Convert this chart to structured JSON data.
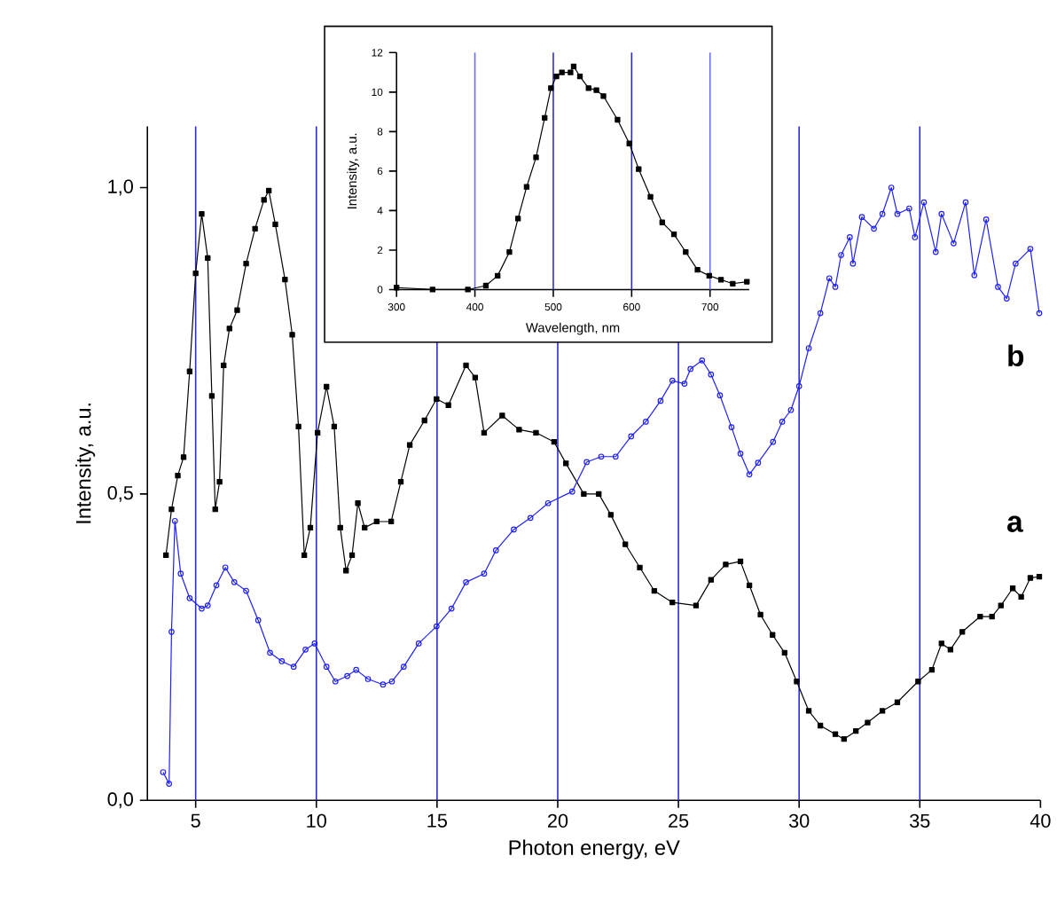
{
  "chart_data": [
    {
      "type": "line",
      "xlabel": "Photon energy, eV",
      "ylabel": "Intensity, a.u.",
      "xlim": [
        3,
        40
      ],
      "ylim": [
        0,
        1.1
      ],
      "xticks": [
        5,
        10,
        15,
        20,
        25,
        30,
        35,
        40
      ],
      "yticks": [
        {
          "value": 0,
          "label": "0,0"
        },
        {
          "value": 0.5,
          "label": "0,5"
        },
        {
          "value": 1.0,
          "label": "1,0"
        }
      ],
      "series": [
        {
          "color": "#000000",
          "marker": "square",
          "x": [
            3.77,
            4.0,
            4.26,
            4.5,
            4.75,
            5.0,
            5.25,
            5.5,
            5.67,
            5.81,
            5.99,
            6.16,
            6.4,
            6.72,
            7.09,
            7.46,
            7.83,
            8.03,
            8.3,
            8.7,
            9.0,
            9.26,
            9.5,
            9.75,
            10.05,
            10.42,
            10.74,
            10.99,
            11.23,
            11.48,
            11.72,
            12.0,
            12.5,
            13.1,
            13.5,
            13.87,
            14.48,
            14.98,
            15.47,
            16.2,
            16.58,
            16.95,
            17.7,
            18.4,
            19.1,
            19.85,
            20.34,
            21.08,
            21.7,
            22.2,
            22.8,
            23.4,
            24.0,
            24.75,
            25.73,
            26.35,
            26.96,
            27.57,
            27.94,
            28.4,
            28.9,
            29.4,
            29.9,
            30.4,
            30.88,
            31.5,
            31.86,
            32.35,
            32.84,
            33.45,
            34.07,
            34.93,
            35.5,
            35.9,
            36.27,
            36.76,
            37.5,
            37.99,
            38.36,
            38.85,
            39.2,
            39.58,
            39.95
          ],
          "values": [
            0.4,
            0.475,
            0.53,
            0.56,
            0.7,
            0.86,
            0.957,
            0.885,
            0.66,
            0.475,
            0.52,
            0.71,
            0.77,
            0.8,
            0.876,
            0.933,
            0.98,
            0.995,
            0.94,
            0.85,
            0.76,
            0.61,
            0.4,
            0.445,
            0.6,
            0.675,
            0.61,
            0.445,
            0.375,
            0.4,
            0.485,
            0.445,
            0.455,
            0.455,
            0.52,
            0.58,
            0.62,
            0.655,
            0.645,
            0.71,
            0.69,
            0.6,
            0.628,
            0.605,
            0.6,
            0.585,
            0.55,
            0.5,
            0.5,
            0.466,
            0.418,
            0.38,
            0.342,
            0.323,
            0.318,
            0.36,
            0.385,
            0.39,
            0.351,
            0.303,
            0.27,
            0.241,
            0.194,
            0.146,
            0.122,
            0.108,
            0.1,
            0.113,
            0.127,
            0.146,
            0.16,
            0.194,
            0.213,
            0.256,
            0.246,
            0.275,
            0.3,
            0.3,
            0.318,
            0.346,
            0.332,
            0.363,
            0.365
          ]
        },
        {
          "color": "#1f1fff",
          "marker": "circle",
          "x": [
            3.65,
            3.9,
            4.0,
            4.14,
            4.38,
            4.75,
            5.25,
            5.5,
            5.86,
            6.23,
            6.6,
            7.09,
            7.59,
            8.08,
            8.57,
            9.06,
            9.55,
            9.93,
            10.42,
            10.79,
            11.28,
            11.65,
            12.14,
            12.76,
            13.13,
            13.62,
            14.24,
            14.98,
            15.6,
            16.2,
            16.95,
            17.44,
            18.18,
            18.87,
            19.6,
            20.6,
            21.2,
            21.8,
            22.4,
            23.04,
            23.65,
            24.26,
            24.75,
            25.25,
            25.5,
            25.98,
            26.35,
            26.72,
            27.2,
            27.57,
            27.94,
            28.3,
            28.92,
            29.3,
            29.66,
            30.0,
            30.4,
            30.88,
            31.25,
            31.5,
            31.74,
            32.1,
            32.23,
            32.6,
            33.1,
            33.45,
            33.82,
            34.07,
            34.56,
            34.8,
            35.17,
            35.66,
            35.9,
            36.4,
            36.9,
            37.26,
            37.75,
            38.24,
            38.6,
            38.97,
            39.58,
            39.95
          ],
          "values": [
            0.046,
            0.027,
            0.275,
            0.456,
            0.37,
            0.33,
            0.313,
            0.318,
            0.351,
            0.38,
            0.356,
            0.342,
            0.294,
            0.241,
            0.227,
            0.218,
            0.246,
            0.256,
            0.218,
            0.194,
            0.203,
            0.213,
            0.198,
            0.189,
            0.194,
            0.218,
            0.256,
            0.284,
            0.313,
            0.356,
            0.37,
            0.408,
            0.442,
            0.461,
            0.485,
            0.504,
            0.552,
            0.561,
            0.561,
            0.594,
            0.618,
            0.652,
            0.685,
            0.68,
            0.704,
            0.718,
            0.695,
            0.661,
            0.609,
            0.566,
            0.532,
            0.551,
            0.585,
            0.618,
            0.637,
            0.676,
            0.738,
            0.795,
            0.852,
            0.838,
            0.89,
            0.919,
            0.876,
            0.952,
            0.933,
            0.957,
            1.0,
            0.957,
            0.966,
            0.919,
            0.976,
            0.895,
            0.957,
            0.909,
            0.976,
            0.857,
            0.948,
            0.838,
            0.819,
            0.876,
            0.9,
            0.795
          ]
        }
      ],
      "annotations": [
        "a",
        "b"
      ],
      "ref_lines": [
        {
          "axis": "x",
          "value": 5,
          "color": "#2a2ad0"
        },
        {
          "axis": "x",
          "value": 10,
          "color": "#2a2ad0"
        },
        {
          "axis": "x",
          "value": 15,
          "color": "#2a2ad0"
        },
        {
          "axis": "x",
          "value": 20,
          "color": "#2a2ad0"
        },
        {
          "axis": "x",
          "value": 25,
          "color": "#2a2ad0"
        },
        {
          "axis": "x",
          "value": 30,
          "color": "#2a2ad0"
        },
        {
          "axis": "x",
          "value": 35,
          "color": "#2a2ad0"
        }
      ]
    },
    {
      "type": "line",
      "xlabel": "Wavelength, nm",
      "ylabel": "Intensity, a.u.",
      "xlim": [
        300,
        750
      ],
      "ylim": [
        0,
        12
      ],
      "xticks": [
        300,
        400,
        500,
        600,
        700
      ],
      "yticks": [
        0,
        2,
        4,
        6,
        8,
        10,
        12
      ],
      "series": [
        {
          "color": "#000000",
          "marker": "square",
          "x": [
            300,
            346,
            391,
            414,
            429,
            444,
            455,
            466,
            478,
            489,
            497,
            504,
            511,
            522,
            526,
            534,
            545,
            555,
            564,
            582,
            597,
            609,
            624,
            639,
            654,
            669,
            684,
            699,
            714,
            729,
            747
          ],
          "values": [
            0.1,
            0.0,
            0.0,
            0.2,
            0.7,
            1.9,
            3.6,
            5.2,
            6.7,
            8.7,
            10.2,
            10.8,
            11.0,
            11.0,
            11.3,
            10.8,
            10.2,
            10.1,
            9.8,
            8.6,
            7.4,
            6.1,
            4.7,
            3.4,
            2.8,
            1.9,
            1.0,
            0.7,
            0.5,
            0.3,
            0.4
          ]
        }
      ],
      "ref_lines": [
        {
          "axis": "x",
          "value": 400,
          "color": "#6a6aff"
        },
        {
          "axis": "x",
          "value": 500,
          "color": "#2a2ad0"
        },
        {
          "axis": "x",
          "value": 600,
          "color": "#2a2ad0"
        },
        {
          "axis": "x",
          "value": 700,
          "color": "#6a6aff"
        }
      ]
    }
  ]
}
